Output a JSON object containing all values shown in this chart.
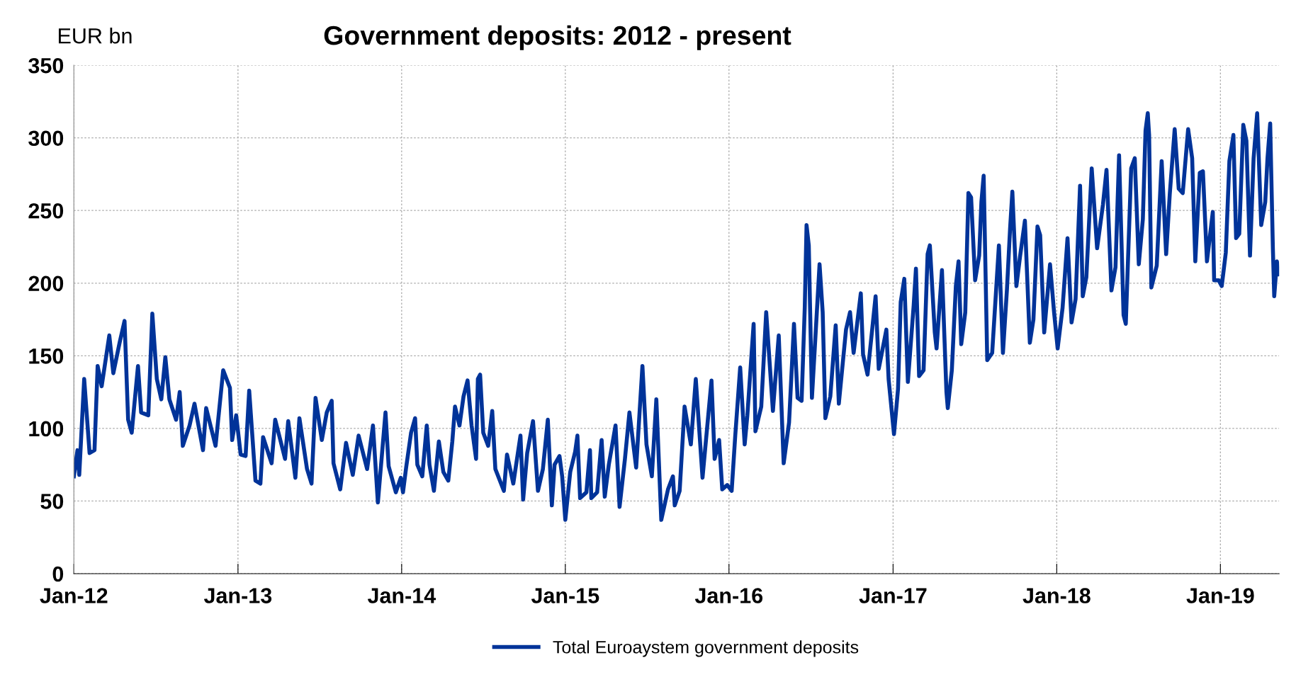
{
  "chart_data": {
    "type": "line",
    "title": "Government deposits: 2012 - present",
    "ylabel": "EUR bn",
    "x": [
      "2012-01-01",
      "2012-01-09",
      "2012-01-13",
      "2012-01-24",
      "2012-02-05",
      "2012-02-16",
      "2012-02-23",
      "2012-03-03",
      "2012-03-20",
      "2012-03-29",
      "2012-04-12",
      "2012-04-23",
      "2012-05-01",
      "2012-05-09",
      "2012-05-23",
      "2012-05-30",
      "2012-06-15",
      "2012-06-24",
      "2012-07-04",
      "2012-07-14",
      "2012-07-23",
      "2012-08-01",
      "2012-08-16",
      "2012-08-24",
      "2012-08-31",
      "2012-09-15",
      "2012-09-26",
      "2012-10-15",
      "2012-10-22",
      "2012-11-12",
      "2012-11-29",
      "2012-12-14",
      "2012-12-19",
      "2012-12-28",
      "2013-01-07",
      "2013-01-18",
      "2013-01-26",
      "2013-02-09",
      "2013-02-20",
      "2013-02-26",
      "2013-03-17",
      "2013-03-25",
      "2013-04-16",
      "2013-04-23",
      "2013-05-09",
      "2013-05-18",
      "2013-06-04",
      "2013-06-14",
      "2013-06-23",
      "2013-07-07",
      "2013-07-18",
      "2013-07-29",
      "2013-08-02",
      "2013-08-17",
      "2013-08-30",
      "2013-09-14",
      "2013-09-27",
      "2013-10-16",
      "2013-10-29",
      "2013-11-09",
      "2013-11-26",
      "2013-12-03",
      "2013-12-19",
      "2013-12-30",
      "2014-01-04",
      "2014-01-11",
      "2014-01-22",
      "2014-01-31",
      "2014-02-05",
      "2014-02-16",
      "2014-02-26",
      "2014-03-04",
      "2014-03-14",
      "2014-03-25",
      "2014-04-04",
      "2014-04-15",
      "2014-04-24",
      "2014-04-30",
      "2014-05-10",
      "2014-05-19",
      "2014-05-28",
      "2014-06-06",
      "2014-06-16",
      "2014-06-20",
      "2014-06-25",
      "2014-07-02",
      "2014-07-13",
      "2014-07-22",
      "2014-07-29",
      "2014-08-17",
      "2014-08-24",
      "2014-09-07",
      "2014-09-23",
      "2014-09-29",
      "2014-10-08",
      "2014-10-21",
      "2014-11-01",
      "2014-11-12",
      "2014-11-23",
      "2014-12-02",
      "2014-12-08",
      "2014-12-19",
      "2014-12-25",
      "2015-01-01",
      "2015-01-12",
      "2015-01-23",
      "2015-01-28",
      "2015-02-03",
      "2015-02-17",
      "2015-02-25",
      "2015-02-28",
      "2015-03-13",
      "2015-03-23",
      "2015-03-30",
      "2015-04-08",
      "2015-04-23",
      "2015-05-02",
      "2015-05-14",
      "2015-05-24",
      "2015-06-08",
      "2015-06-22",
      "2015-07-01",
      "2015-07-13",
      "2015-07-23",
      "2015-08-03",
      "2015-08-18",
      "2015-08-29",
      "2015-09-02",
      "2015-09-13",
      "2015-09-24",
      "2015-10-08",
      "2015-10-19",
      "2015-11-03",
      "2015-11-23",
      "2015-11-30",
      "2015-12-10",
      "2015-12-17",
      "2015-12-28",
      "2016-01-07",
      "2016-01-15",
      "2016-01-26",
      "2016-02-05",
      "2016-02-11",
      "2016-02-25",
      "2016-02-29",
      "2016-03-13",
      "2016-03-24",
      "2016-04-08",
      "2016-04-21",
      "2016-05-02",
      "2016-05-14",
      "2016-05-25",
      "2016-06-02",
      "2016-06-11",
      "2016-06-18",
      "2016-06-22",
      "2016-06-27",
      "2016-07-04",
      "2016-07-12",
      "2016-07-21",
      "2016-07-28",
      "2016-08-03",
      "2016-08-14",
      "2016-08-26",
      "2016-09-02",
      "2016-09-18",
      "2016-09-27",
      "2016-10-05",
      "2016-10-21",
      "2016-10-26",
      "2016-11-05",
      "2016-11-23",
      "2016-11-30",
      "2016-12-17",
      "2016-12-22",
      "2017-01-03",
      "2017-01-12",
      "2017-01-18",
      "2017-01-26",
      "2017-02-03",
      "2017-02-16",
      "2017-02-21",
      "2017-02-28",
      "2017-03-10",
      "2017-03-19",
      "2017-03-24",
      "2017-04-04",
      "2017-04-08",
      "2017-04-20",
      "2017-04-30",
      "2017-05-03",
      "2017-05-12",
      "2017-05-21",
      "2017-05-27",
      "2017-06-02",
      "2017-06-11",
      "2017-06-18",
      "2017-06-24",
      "2017-07-03",
      "2017-07-12",
      "2017-07-17",
      "2017-07-22",
      "2017-07-30",
      "2017-08-10",
      "2017-08-25",
      "2017-09-03",
      "2017-09-12",
      "2017-09-19",
      "2017-09-24",
      "2017-10-03",
      "2017-10-11",
      "2017-10-22",
      "2017-11-02",
      "2017-11-10",
      "2017-11-19",
      "2017-11-25",
      "2017-12-04",
      "2017-12-17",
      "2017-12-26",
      "2018-01-03",
      "2018-01-14",
      "2018-01-25",
      "2018-02-03",
      "2018-02-12",
      "2018-02-22",
      "2018-02-28",
      "2018-03-08",
      "2018-03-20",
      "2018-04-01",
      "2018-04-14",
      "2018-04-22",
      "2018-05-03",
      "2018-05-12",
      "2018-05-20",
      "2018-05-30",
      "2018-06-04",
      "2018-06-16",
      "2018-06-24",
      "2018-07-03",
      "2018-07-12",
      "2018-07-18",
      "2018-07-23",
      "2018-07-26",
      "2018-07-31",
      "2018-08-12",
      "2018-08-23",
      "2018-09-02",
      "2018-09-10",
      "2018-09-21",
      "2018-09-30",
      "2018-10-09",
      "2018-10-21",
      "2018-10-30",
      "2018-11-06",
      "2018-11-16",
      "2018-11-23",
      "2018-12-02",
      "2018-12-15",
      "2018-12-18",
      "2018-12-28",
      "2019-01-04",
      "2019-01-13",
      "2019-01-21",
      "2019-01-30",
      "2019-02-05",
      "2019-02-12",
      "2019-02-21",
      "2019-02-28",
      "2019-03-08",
      "2019-03-16",
      "2019-03-24",
      "2019-04-02",
      "2019-04-11",
      "2019-04-16",
      "2019-04-22",
      "2019-04-28",
      "2019-05-01",
      "2019-05-07",
      "2019-05-11"
    ],
    "series": [
      {
        "name": "Total Euroaystem government deposits",
        "color": "#003399",
        "values": [
          67,
          85,
          68,
          134,
          83,
          85,
          143,
          129,
          164,
          138,
          159,
          174,
          106,
          97,
          143,
          111,
          109,
          179,
          134,
          120,
          149,
          120,
          106,
          125,
          88,
          102,
          117,
          85,
          114,
          88,
          140,
          128,
          92,
          109,
          82,
          81,
          126,
          64,
          62,
          94,
          76,
          106,
          79,
          105,
          66,
          107,
          72,
          62,
          121,
          92,
          111,
          119,
          76,
          58,
          90,
          68,
          95,
          72,
          102,
          49,
          111,
          74,
          56,
          66,
          56,
          73,
          97,
          107,
          75,
          67,
          102,
          75,
          57,
          91,
          70,
          64,
          91,
          115,
          102,
          122,
          133,
          102,
          79,
          134,
          137,
          97,
          88,
          112,
          72,
          57,
          82,
          62,
          95,
          51,
          83,
          105,
          57,
          72,
          106,
          47,
          75,
          81,
          67,
          37,
          70,
          84,
          95,
          52,
          56,
          85,
          52,
          56,
          92,
          53,
          75,
          102,
          46,
          79,
          111,
          73,
          143,
          89,
          67,
          120,
          37,
          58,
          67,
          47,
          57,
          115,
          89,
          134,
          66,
          133,
          79,
          92,
          58,
          61,
          57,
          95,
          142,
          89,
          109,
          172,
          98,
          115,
          180,
          112,
          164,
          76,
          104,
          172,
          121,
          119,
          183,
          240,
          226,
          121,
          164,
          213,
          180,
          107,
          122,
          171,
          117,
          168,
          180,
          152,
          193,
          151,
          137,
          191,
          141,
          168,
          134,
          96,
          127,
          187,
          203,
          132,
          185,
          210,
          136,
          140,
          220,
          226,
          166,
          155,
          209,
          125,
          114,
          140,
          198,
          215,
          158,
          180,
          262,
          259,
          202,
          219,
          256,
          274,
          147,
          152,
          226,
          152,
          196,
          238,
          263,
          198,
          218,
          243,
          159,
          175,
          239,
          233,
          166,
          213,
          180,
          155,
          183,
          231,
          173,
          189,
          267,
          191,
          204,
          279,
          224,
          254,
          278,
          195,
          211,
          288,
          178,
          172,
          279,
          286,
          213,
          244,
          305,
          317,
          302,
          197,
          212,
          284,
          220,
          261,
          306,
          265,
          262,
          306,
          286,
          215,
          276,
          277,
          215,
          249,
          202,
          202,
          198,
          221,
          284,
          302,
          231,
          234,
          309,
          298,
          219,
          286,
          317,
          240,
          256,
          286,
          310,
          224,
          191,
          215,
          206
        ]
      }
    ],
    "xlim": [
      "2012-01-01",
      "2019-05-12"
    ],
    "xticks": [
      {
        "value": "2012-01-01",
        "label": "Jan-12"
      },
      {
        "value": "2013-01-01",
        "label": "Jan-13"
      },
      {
        "value": "2014-01-01",
        "label": "Jan-14"
      },
      {
        "value": "2015-01-01",
        "label": "Jan-15"
      },
      {
        "value": "2016-01-01",
        "label": "Jan-16"
      },
      {
        "value": "2017-01-01",
        "label": "Jan-17"
      },
      {
        "value": "2018-01-01",
        "label": "Jan-18"
      },
      {
        "value": "2019-01-01",
        "label": "Jan-19"
      }
    ],
    "ylim": [
      0,
      350
    ],
    "yticks": [
      0,
      50,
      100,
      150,
      200,
      250,
      300,
      350
    ],
    "grid": true,
    "legend": "bottom",
    "line_style": "solid",
    "marker": "none"
  }
}
